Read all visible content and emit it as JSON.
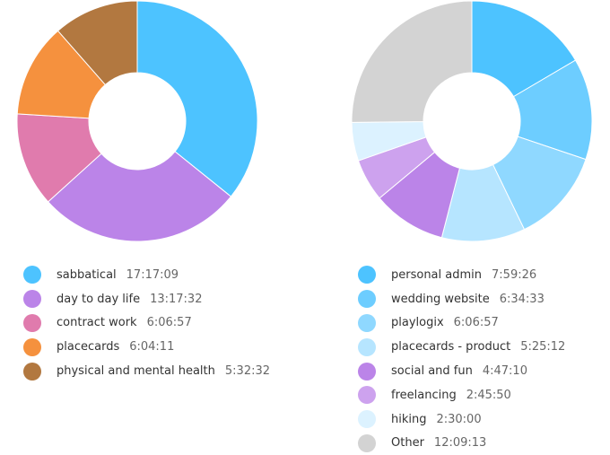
{
  "chart_data": [
    {
      "type": "donut",
      "title": "",
      "slices": [
        {
          "label": "sabbatical",
          "time": "17:17:09",
          "value": 62229,
          "color": "#4dc3ff"
        },
        {
          "label": "day to day life",
          "time": "13:17:32",
          "value": 47852,
          "color": "#bb84e8"
        },
        {
          "label": "contract work",
          "time": "6:06:57",
          "value": 22017,
          "color": "#e07bad"
        },
        {
          "label": "placecards",
          "time": "6:04:11",
          "value": 21851,
          "color": "#f5913e"
        },
        {
          "label": "physical and mental health",
          "time": "5:32:32",
          "value": 19952,
          "color": "#b27840"
        }
      ]
    },
    {
      "type": "donut",
      "title": "",
      "slices": [
        {
          "label": "personal admin",
          "time": "7:59:26",
          "value": 28766,
          "color": "#4dc3ff"
        },
        {
          "label": "wedding website",
          "time": "6:34:33",
          "value": 23673,
          "color": "#6dcdff"
        },
        {
          "label": "playlogix",
          "time": "6:06:57",
          "value": 22017,
          "color": "#8fd8ff"
        },
        {
          "label": "placecards - product",
          "time": "5:25:12",
          "value": 19512,
          "color": "#b6e5ff"
        },
        {
          "label": "social and fun",
          "time": "4:47:10",
          "value": 17230,
          "color": "#bb84e8"
        },
        {
          "label": "freelancing",
          "time": "2:45:50",
          "value": 9950,
          "color": "#cda2ee"
        },
        {
          "label": "hiking",
          "time": "2:30:00",
          "value": 9000,
          "color": "#dcf2ff"
        },
        {
          "label": "Other",
          "time": "12:09:13",
          "value": 43753,
          "color": "#d3d3d3"
        }
      ]
    }
  ]
}
